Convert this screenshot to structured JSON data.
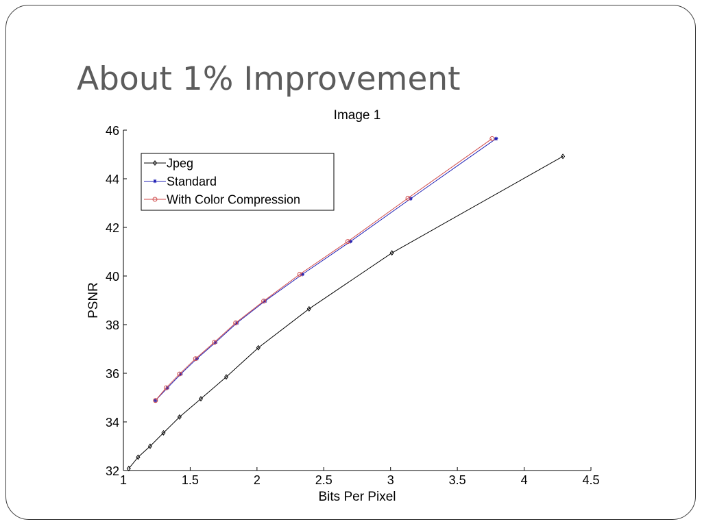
{
  "slide": {
    "title": "About 1% Improvement"
  },
  "chart_data": {
    "type": "line",
    "title": "Image 1",
    "xlabel": "Bits Per Pixel",
    "ylabel": "PSNR",
    "xlim": [
      1,
      4.5
    ],
    "ylim": [
      32,
      46
    ],
    "xticks": [
      1,
      1.5,
      2,
      2.5,
      3,
      3.5,
      4,
      4.5
    ],
    "xtick_labels": [
      "1",
      "1.5",
      "2",
      "2.5",
      "3",
      "3.5",
      "4",
      "4.5"
    ],
    "yticks": [
      32,
      34,
      36,
      38,
      40,
      42,
      44,
      46
    ],
    "ytick_labels": [
      "32",
      "34",
      "36",
      "38",
      "40",
      "42",
      "44",
      "46"
    ],
    "grid": false,
    "legend_position": "top-left",
    "series": [
      {
        "name": "Jpeg",
        "color": "#000000",
        "marker": "diamond",
        "x": [
          1.04,
          1.11,
          1.2,
          1.3,
          1.42,
          1.58,
          1.77,
          2.01,
          2.39,
          3.01,
          4.29
        ],
        "y": [
          32.08,
          32.55,
          33.0,
          33.55,
          34.2,
          34.95,
          35.85,
          37.05,
          38.65,
          40.95,
          44.92
        ]
      },
      {
        "name": "Standard",
        "color": "#1f1fb4",
        "marker": "star",
        "x": [
          1.24,
          1.33,
          1.43,
          1.55,
          1.69,
          1.85,
          2.06,
          2.34,
          2.7,
          3.15,
          3.79
        ],
        "y": [
          34.88,
          35.4,
          35.97,
          36.6,
          37.27,
          38.07,
          38.97,
          40.07,
          41.42,
          43.18,
          45.65
        ]
      },
      {
        "name": "With Color Compression",
        "color": "#d04a4a",
        "marker": "circle",
        "x": [
          1.24,
          1.32,
          1.42,
          1.54,
          1.68,
          1.84,
          2.05,
          2.32,
          2.68,
          3.13,
          3.76
        ],
        "y": [
          34.88,
          35.4,
          35.97,
          36.6,
          37.27,
          38.07,
          38.97,
          40.07,
          41.42,
          43.2,
          45.65
        ]
      }
    ]
  }
}
